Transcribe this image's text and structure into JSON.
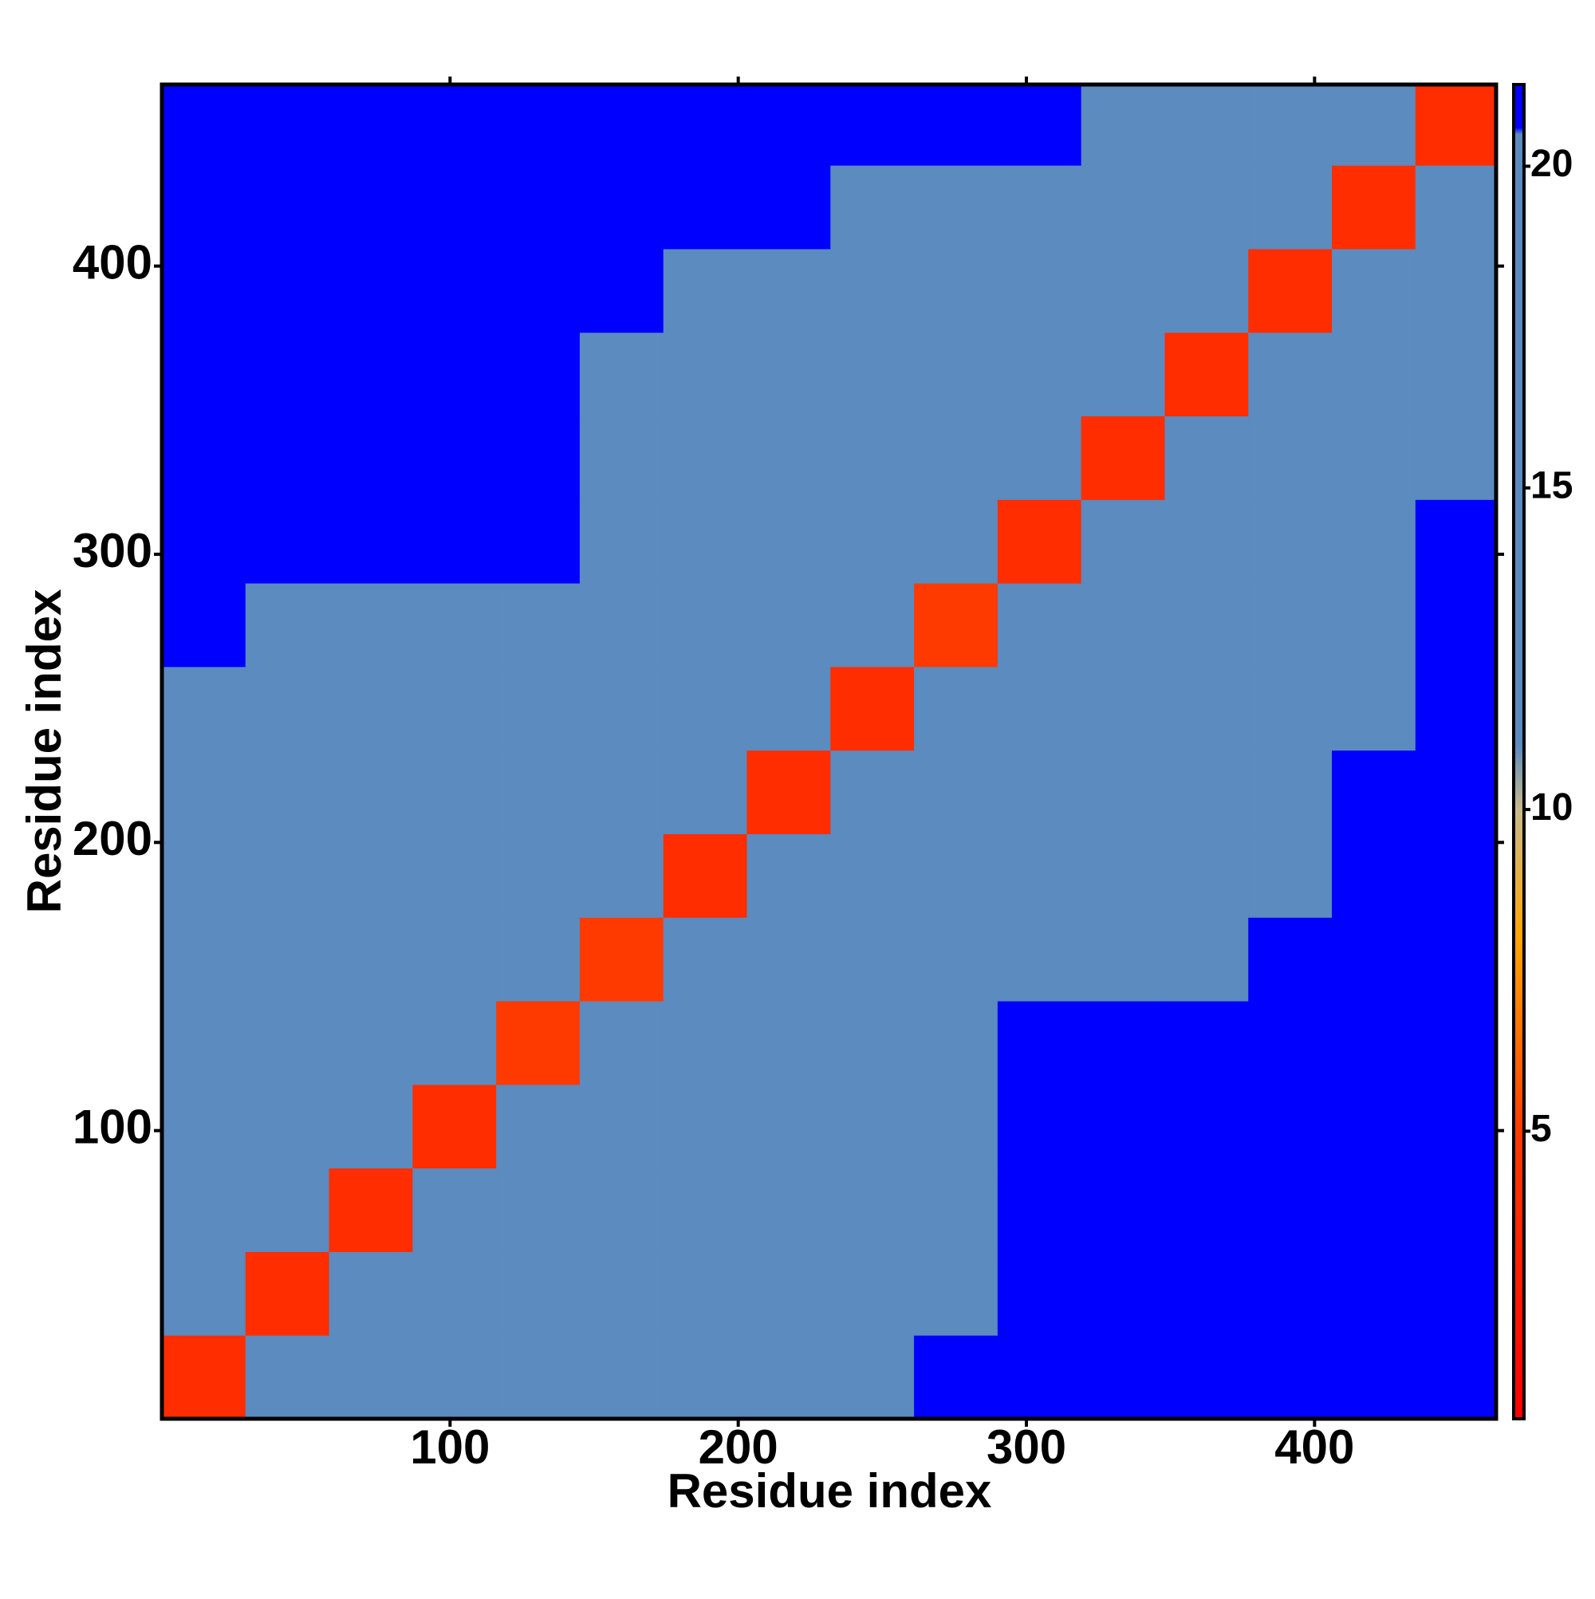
{
  "chart_data": {
    "type": "heatmap",
    "x_label": "Residue index",
    "y_label": "Residue index",
    "bins": [
      0,
      29,
      58,
      87,
      116,
      145,
      174,
      203,
      232,
      261,
      290,
      319,
      348,
      377,
      406,
      435,
      463
    ],
    "xlim": [
      0,
      463
    ],
    "ylim": [
      0,
      463
    ],
    "xticks": [
      100,
      200,
      300,
      400
    ],
    "yticks": [
      100,
      200,
      300,
      400
    ],
    "zlim": [
      0.53,
      21.27
    ],
    "zticks": [
      5,
      10,
      15,
      20
    ],
    "colorscale": [
      [
        0.53,
        "#ff0000"
      ],
      [
        5,
        "#ff3a00"
      ],
      [
        8,
        "#ffa500"
      ],
      [
        10,
        "#c9ba8c"
      ],
      [
        11,
        "#5b8bbf"
      ],
      [
        20.5,
        "#5b8bbf"
      ],
      [
        20.6,
        "#0000ff"
      ],
      [
        21.27,
        "#0000ff"
      ]
    ],
    "z": [
      [
        4,
        12,
        15,
        16,
        17,
        19,
        20,
        18,
        19,
        21,
        21,
        21,
        21,
        21,
        21,
        21
      ],
      [
        12,
        4,
        12,
        15,
        17,
        19,
        20,
        18,
        19,
        20,
        21,
        21,
        21,
        21,
        21,
        21
      ],
      [
        15,
        12,
        4,
        11,
        16,
        18,
        19,
        19,
        19,
        20,
        21,
        21,
        21,
        21,
        21,
        21
      ],
      [
        16,
        15,
        11,
        4,
        12,
        17,
        19,
        19,
        19,
        20,
        21,
        21,
        21,
        21,
        21,
        21
      ],
      [
        17,
        17,
        16,
        12,
        5,
        15,
        18,
        19,
        19,
        20,
        21,
        21,
        21,
        21,
        21,
        21
      ],
      [
        19,
        19,
        18,
        17,
        15,
        5,
        13,
        16,
        16,
        16,
        18,
        18,
        19,
        21,
        21,
        21
      ],
      [
        20,
        20,
        19,
        19,
        18,
        13,
        4,
        12,
        16,
        16,
        18,
        18,
        18,
        20,
        21,
        21
      ],
      [
        18,
        18,
        19,
        19,
        19,
        16,
        12,
        4,
        12,
        16,
        17,
        18,
        18,
        19,
        21,
        21
      ],
      [
        19,
        19,
        19,
        19,
        19,
        16,
        16,
        12,
        4,
        12,
        16,
        18,
        18,
        19,
        20,
        21
      ],
      [
        21,
        20,
        20,
        20,
        20,
        16,
        16,
        16,
        12,
        5,
        15,
        17,
        18,
        19,
        20,
        21
      ],
      [
        21,
        21,
        21,
        21,
        21,
        18,
        18,
        17,
        16,
        15,
        4,
        12,
        16,
        17,
        19,
        21
      ],
      [
        21,
        21,
        21,
        21,
        21,
        18,
        18,
        18,
        18,
        17,
        12,
        4,
        12,
        16,
        18,
        20
      ],
      [
        21,
        21,
        21,
        21,
        21,
        19,
        18,
        18,
        18,
        18,
        16,
        12,
        4,
        12,
        17,
        19
      ],
      [
        21,
        21,
        21,
        21,
        21,
        21,
        20,
        19,
        19,
        19,
        17,
        16,
        12,
        4,
        15,
        18
      ],
      [
        21,
        21,
        21,
        21,
        21,
        21,
        21,
        21,
        20,
        20,
        19,
        18,
        17,
        15,
        4,
        12
      ],
      [
        21,
        21,
        21,
        21,
        21,
        21,
        21,
        21,
        21,
        21,
        21,
        20,
        19,
        18,
        12,
        4
      ]
    ]
  }
}
